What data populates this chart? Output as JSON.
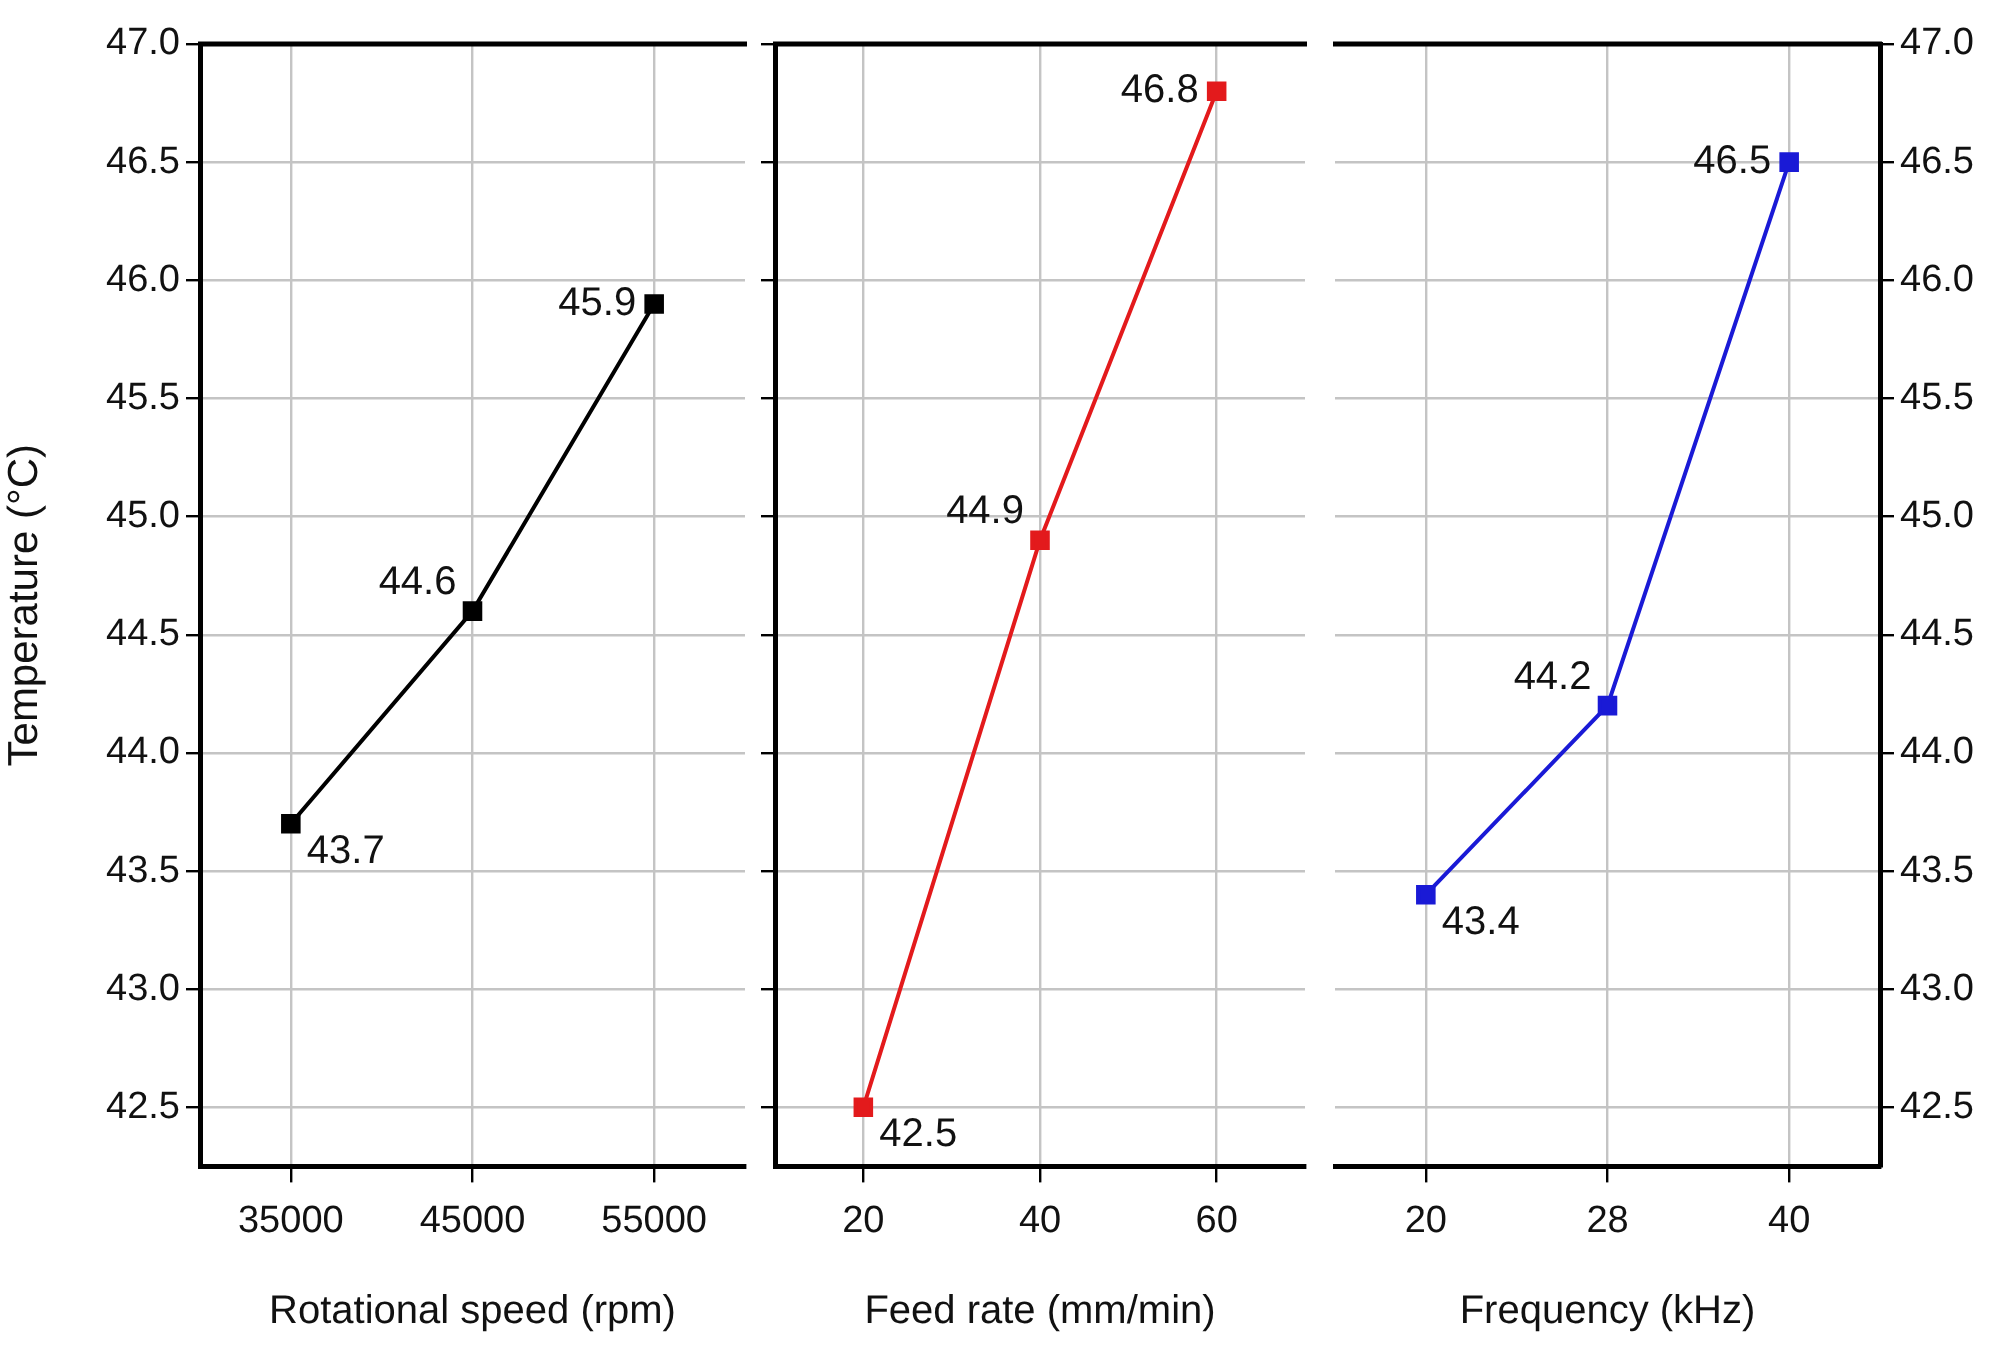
{
  "chart_data": [
    {
      "type": "line",
      "categories": [
        "35000",
        "45000",
        "55000"
      ],
      "xlabel": "Rotational speed (rpm)",
      "ylabel": "Temperature (°C)",
      "ylim": [
        42.25,
        47
      ],
      "yticks": [
        42.5,
        {
          "value": 43,
          "label": "43.0"
        },
        43.5,
        {
          "value": 44,
          "label": "44.0"
        },
        44.5,
        {
          "value": 45,
          "label": "45.0"
        },
        45.5,
        {
          "value": 46,
          "label": "46.0"
        },
        46.5,
        {
          "value": 47,
          "label": "47.0"
        }
      ],
      "grid": true,
      "marker": "square",
      "data_labels": true,
      "series": [
        {
          "color": "#000000",
          "values": [
            43.7,
            44.6,
            45.9
          ]
        }
      ]
    },
    {
      "type": "line",
      "categories": [
        "20",
        "40",
        "60"
      ],
      "xlabel": "Feed rate (mm/min)",
      "ylim": [
        42.25,
        47
      ],
      "yticks": [
        42.5,
        43,
        43.5,
        44,
        44.5,
        45,
        45.5,
        46,
        46.5,
        47
      ],
      "tick_labels": "x",
      "grid": true,
      "marker": "square",
      "data_labels": true,
      "series": [
        {
          "color": "#e31a1c",
          "values": [
            42.5,
            44.9,
            46.8
          ]
        }
      ]
    },
    {
      "type": "line",
      "categories": [
        "20",
        "28",
        "40"
      ],
      "xlabel": "Frequency (kHz)",
      "y2lim": [
        42.25,
        47
      ],
      "y2ticks": [
        42.5,
        {
          "value": 43,
          "label": "43.0"
        },
        43.5,
        {
          "value": 44,
          "label": "44.0"
        },
        44.5,
        {
          "value": 45,
          "label": "45.0"
        },
        45.5,
        {
          "value": 46,
          "label": "46.0"
        },
        46.5,
        {
          "value": 47,
          "label": "47.0"
        }
      ],
      "grid": true,
      "marker": "square",
      "data_labels": true,
      "series": [
        {
          "color": "#1a1ad6",
          "values": [
            43.4,
            44.2,
            46.5
          ],
          "axis": "y2"
        }
      ]
    }
  ]
}
